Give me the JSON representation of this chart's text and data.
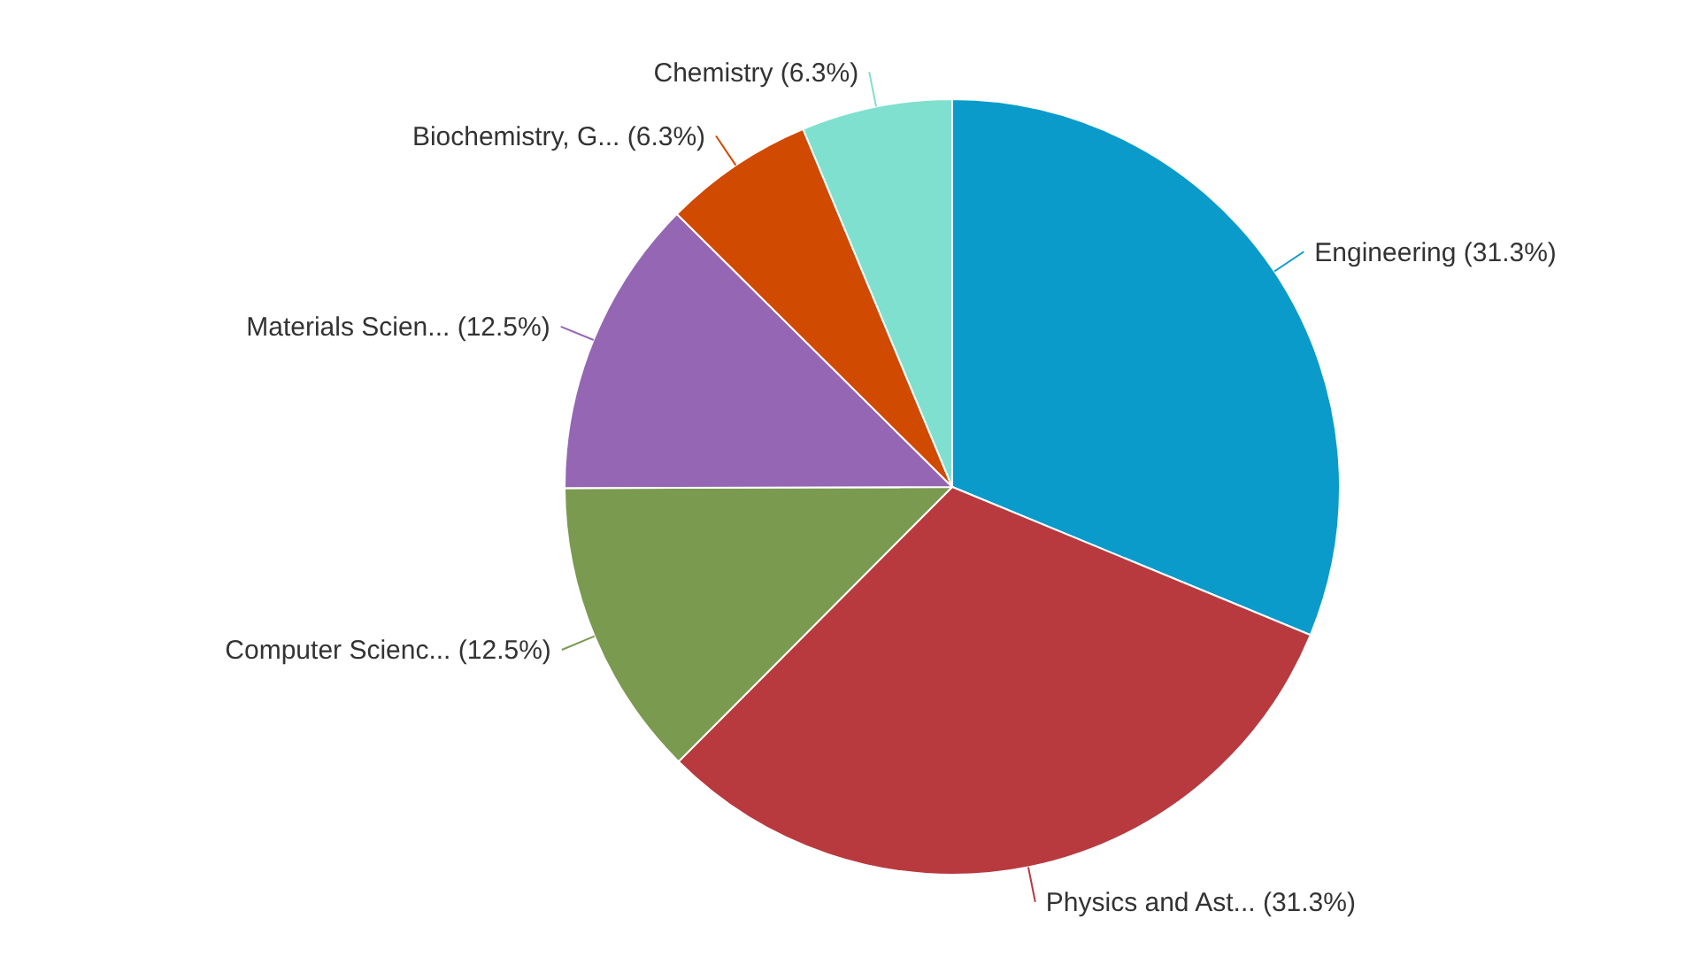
{
  "chart_data": {
    "type": "pie",
    "categories": [
      "Engineering",
      "Physics and Ast...",
      "Computer Scienc...",
      "Materials Scien...",
      "Biochemistry, G...",
      "Chemistry"
    ],
    "values": [
      31.3,
      31.3,
      12.5,
      12.5,
      6.3,
      6.3
    ],
    "value_labels": [
      "(31.3%)",
      "(31.3%)",
      "(12.5%)",
      "(12.5%)",
      "(6.3%)",
      "(6.3%)"
    ],
    "colors": [
      "#0a9bcb",
      "#b83a3f",
      "#7a9a50",
      "#9466b4",
      "#d04a02",
      "#7fe0cf"
    ],
    "legend": false
  }
}
